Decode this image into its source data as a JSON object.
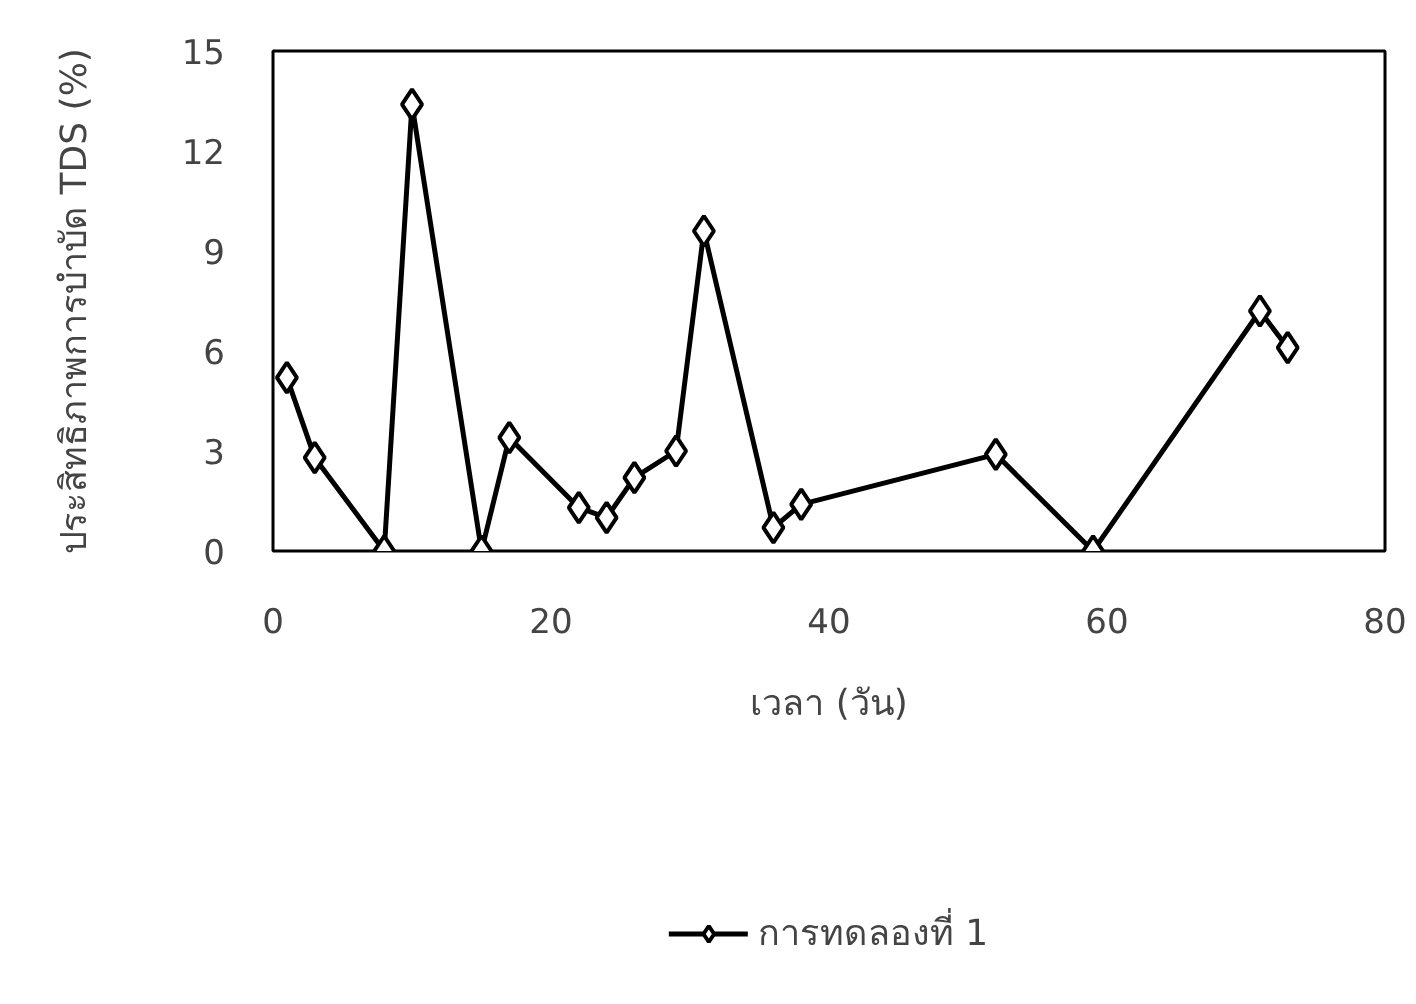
{
  "chart_data": {
    "type": "line",
    "xlabel": "เวลา (วัน)",
    "ylabel": "ประสิทธิภาพการบำบัด TDS (%)",
    "xlim": [
      0,
      80
    ],
    "xticks": [
      0,
      20,
      40,
      60,
      80
    ],
    "ylim": [
      0,
      15
    ],
    "yticks": [
      0,
      3,
      6,
      9,
      12,
      15
    ],
    "grid": false,
    "legend": "bottom",
    "marker": "diamond",
    "line_style": "solid",
    "series": [
      {
        "name": "การทดลองที่ 1",
        "color": "#000000",
        "x": [
          1,
          3,
          8,
          10,
          15,
          17,
          22,
          24,
          26,
          29,
          31,
          36,
          38,
          52,
          59,
          71,
          73
        ],
        "values": [
          5.2,
          2.8,
          0,
          13.4,
          0,
          3.4,
          1.3,
          1.0,
          2.2,
          3.0,
          9.6,
          0.7,
          1.4,
          2.9,
          0,
          7.2,
          6.1
        ]
      }
    ]
  }
}
